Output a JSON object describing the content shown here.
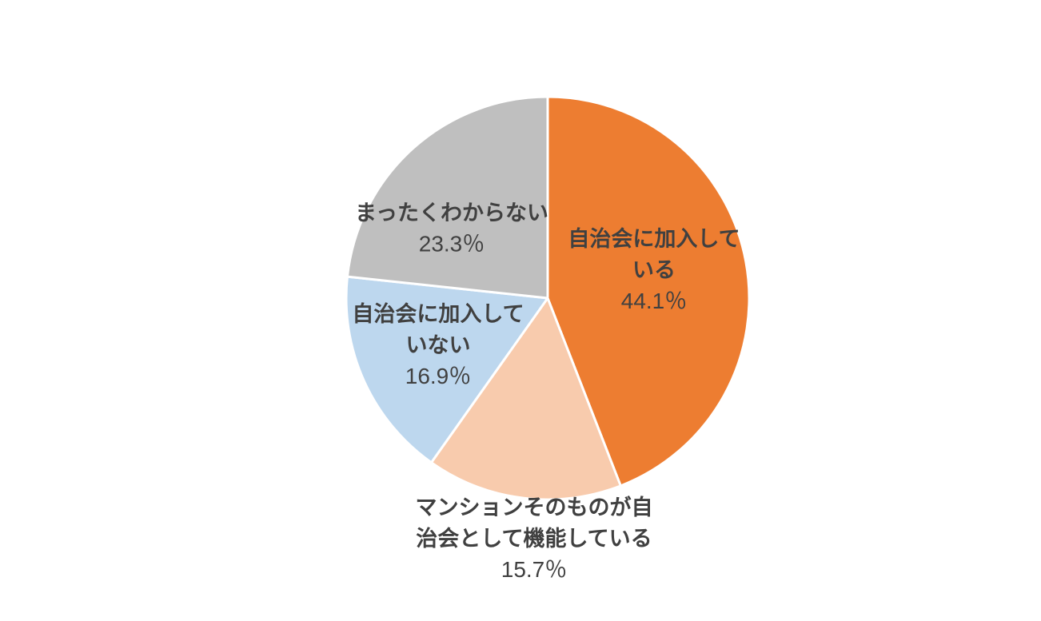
{
  "chart_data": {
    "type": "pie",
    "title": "",
    "start": "12 o'clock",
    "direction": "clockwise",
    "slices": [
      {
        "label_lines": [
          "自治会に加入して",
          "いる"
        ],
        "value": 44.1,
        "value_label": "44.1％",
        "color": "#ED7D31"
      },
      {
        "label_lines": [
          "マンションそのものが自",
          "治会として機能している"
        ],
        "value": 15.7,
        "value_label": "15.7％",
        "color": "#F8CBAD"
      },
      {
        "label_lines": [
          "自治会に加入して",
          "いない"
        ],
        "value": 16.9,
        "value_label": "16.9％",
        "color": "#BDD7EE"
      },
      {
        "label_lines": [
          "まったくわからない"
        ],
        "value": 23.3,
        "value_label": "23.3％",
        "color": "#BFBFBF"
      }
    ]
  }
}
